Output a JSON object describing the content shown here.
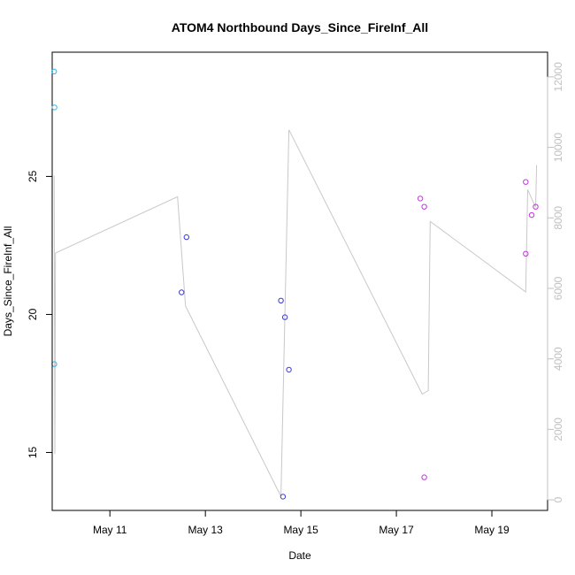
{
  "chart_data": {
    "type": "scatter",
    "title": "ATOM4 Northbound Days_Since_FireInf_All",
    "xlabel": "Date",
    "ylabel": "Days_Since_FireInf_All",
    "x_ticks": [
      "May 11",
      "May 13",
      "May 15",
      "May 17",
      "May 19"
    ],
    "x_tick_values": [
      "2019-05-11",
      "2019-05-13",
      "2019-05-15",
      "2019-05-17",
      "2019-05-19"
    ],
    "xlim": [
      "2019-05-09T19:00",
      "2019-05-20T04:00"
    ],
    "y_ticks": [
      15,
      20,
      25
    ],
    "ylim": [
      12.9,
      29.5
    ],
    "y2_ticks": [
      0,
      2000,
      4000,
      6000,
      8000,
      10000,
      12000
    ],
    "y2lim": [
      -300,
      12700
    ],
    "grid": false,
    "series": [
      {
        "color": "#2fb5f0",
        "points": [
          {
            "x": "2019-05-09T20:00",
            "y": 28.8
          },
          {
            "x": "2019-05-09T20:10",
            "y": 27.5
          },
          {
            "x": "2019-05-09T20:05",
            "y": 18.2
          }
        ]
      },
      {
        "color": "#3a3adc",
        "points": [
          {
            "x": "2019-05-12T12:00",
            "y": 20.8
          },
          {
            "x": "2019-05-12T14:30",
            "y": 22.8
          },
          {
            "x": "2019-05-14T14:00",
            "y": 20.5
          },
          {
            "x": "2019-05-14T16:00",
            "y": 19.9
          },
          {
            "x": "2019-05-14T18:00",
            "y": 18.0
          },
          {
            "x": "2019-05-14T15:00",
            "y": 13.4
          }
        ]
      },
      {
        "color": "#c433e0",
        "points": [
          {
            "x": "2019-05-17T12:00",
            "y": 24.2
          },
          {
            "x": "2019-05-17T14:00",
            "y": 23.9
          },
          {
            "x": "2019-05-17T14:00",
            "y": 14.1
          },
          {
            "x": "2019-05-19T17:00",
            "y": 24.8
          },
          {
            "x": "2019-05-19T17:00",
            "y": 22.2
          },
          {
            "x": "2019-05-19T20:00",
            "y": 23.6
          },
          {
            "x": "2019-05-19T22:00",
            "y": 23.9
          }
        ]
      }
    ],
    "line_series": {
      "color": "#c8c8c8",
      "axis": "right",
      "points": [
        {
          "x": "2019-05-09T20:00",
          "y": 9200
        },
        {
          "x": "2019-05-09T20:20",
          "y": 1300
        },
        {
          "x": "2019-05-09T20:40",
          "y": 7000
        },
        {
          "x": "2019-05-12T10:00",
          "y": 8600
        },
        {
          "x": "2019-05-12T14:00",
          "y": 5500
        },
        {
          "x": "2019-05-14T14:00",
          "y": 100
        },
        {
          "x": "2019-05-14T18:00",
          "y": 10500
        },
        {
          "x": "2019-05-17T13:00",
          "y": 3000
        },
        {
          "x": "2019-05-17T16:00",
          "y": 3100
        },
        {
          "x": "2019-05-17T17:00",
          "y": 7900
        },
        {
          "x": "2019-05-19T17:00",
          "y": 5900
        },
        {
          "x": "2019-05-19T18:00",
          "y": 8800
        },
        {
          "x": "2019-05-19T22:00",
          "y": 8300
        },
        {
          "x": "2019-05-19T22:30",
          "y": 9500
        }
      ]
    }
  }
}
